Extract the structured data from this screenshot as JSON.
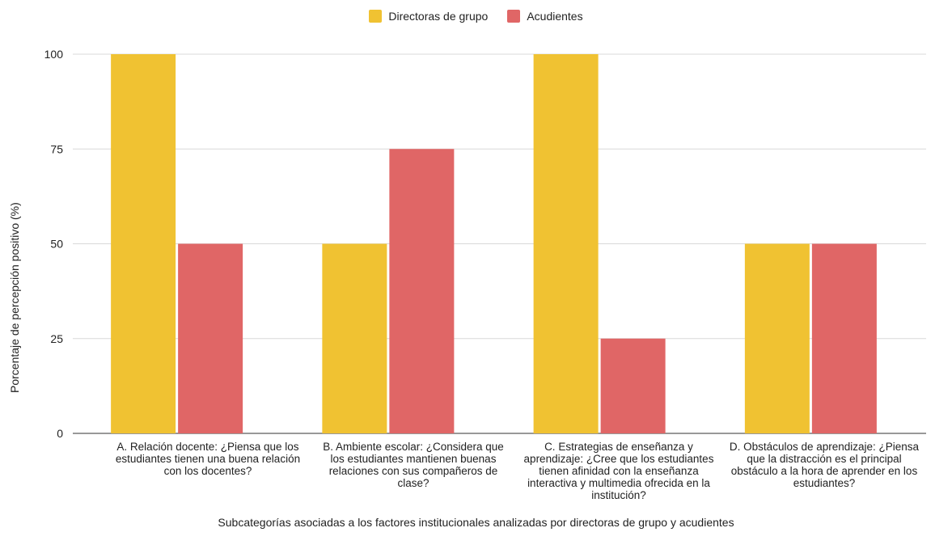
{
  "chart_data": {
    "type": "bar",
    "categories": [
      "A. Relación docente: ¿Piensa que los estudiantes tienen una buena relación con los docentes?",
      "B. Ambiente escolar: ¿Considera que los estudiantes mantienen buenas relaciones con sus compañeros de clase?",
      "C. Estrategias de enseñanza y aprendizaje: ¿Cree que los estudiantes tienen afinidad con la enseñanza interactiva y multimedia ofrecida en la institución?",
      "D. Obstáculos de aprendizaje: ¿Piensa que la distracción es el principal obstáculo a la hora de aprender en los estudiantes?"
    ],
    "series": [
      {
        "name": "Directoras de grupo",
        "values": [
          100,
          50,
          100,
          50
        ],
        "color": "#F0C232"
      },
      {
        "name": "Acudientes",
        "values": [
          50,
          75,
          25,
          50
        ],
        "color": "#E06666"
      }
    ],
    "xlabel": "Subcategorías asociadas a los factores institucionales analizadas por directoras de grupo y acudientes",
    "ylabel": "Porcentaje de percepción positivo (%)",
    "ylim": [
      0,
      100
    ],
    "yticks": [
      0,
      25,
      50,
      75,
      100
    ],
    "grid": true,
    "legend_position": "top-center"
  }
}
